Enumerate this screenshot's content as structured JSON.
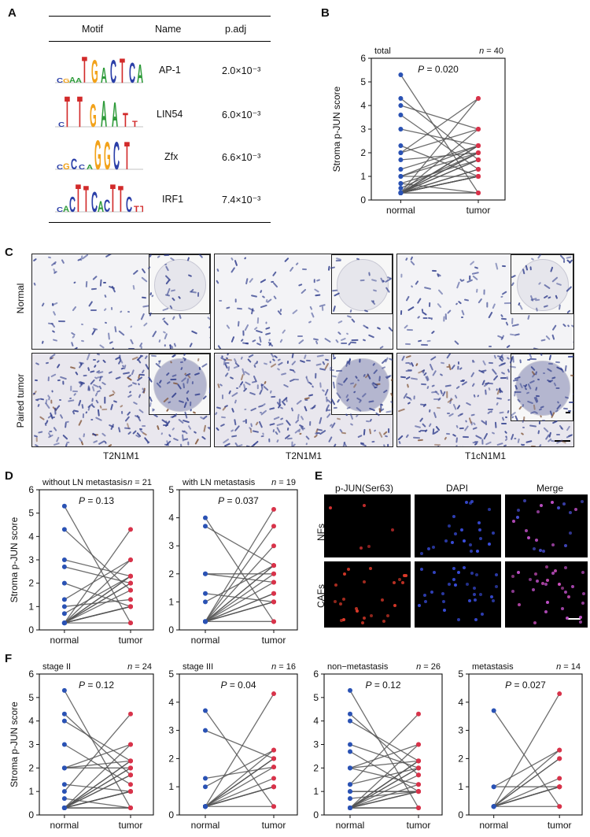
{
  "panel_labels": [
    "A",
    "B",
    "C",
    "D",
    "E",
    "F"
  ],
  "panelA": {
    "headers": [
      "Motif",
      "Name",
      "p.adj"
    ],
    "rows": [
      {
        "name": "AP-1",
        "padj": "2.0×10⁻³"
      },
      {
        "name": "LIN54",
        "padj": "6.0×10⁻³"
      },
      {
        "name": "Zfx",
        "padj": "6.6×10⁻³"
      },
      {
        "name": "IRF1",
        "padj": "7.4×10⁻³"
      }
    ],
    "colors": {
      "A": "#2e9b3a",
      "C": "#2b3fa8",
      "G": "#f2a21a",
      "T": "#d22a2a"
    }
  },
  "panelC": {
    "row_labels": [
      "Normal",
      "Paired tumor"
    ],
    "captions": [
      "T2N1M1",
      "T2N1M1",
      "T1cN1M1"
    ]
  },
  "panelE": {
    "headers": [
      "p-JUN(Ser63)",
      "DAPI",
      "Merge"
    ],
    "row_labels": [
      "NFs",
      "CAFs"
    ]
  },
  "ylabel": "Stroma p-JUN score",
  "chart_data": [
    {
      "id": "B",
      "type": "scatter",
      "subtitle": "total",
      "n": "40",
      "p": "0.020",
      "categories": [
        "normal",
        "tumor"
      ],
      "ylim": [
        0,
        6
      ],
      "yticks": [
        0,
        1,
        2,
        3,
        4,
        5,
        6
      ],
      "normal": [
        5.3,
        4.3,
        4.0,
        3.6,
        3.0,
        2.3,
        2.0,
        2.0,
        1.7,
        1.3,
        1.0,
        1.0,
        1.0,
        0.7,
        0.7,
        0.5,
        0.3,
        0.3,
        0.3,
        0.3,
        0.3,
        0.3,
        0.3,
        0.3,
        0.3,
        0.3,
        0.3,
        0.3,
        0.3,
        0.3,
        0.3,
        0.3,
        0.3,
        0.3,
        0.3,
        0.3,
        0.3,
        0.3,
        0.3,
        0.3
      ],
      "tumor": [
        0.3,
        1.7,
        3.0,
        1.3,
        2.3,
        1.0,
        3.0,
        4.3,
        2.0,
        2.3,
        2.3,
        1.0,
        2.0,
        0.3,
        1.7,
        2.0,
        1.0,
        1.0,
        1.0,
        1.0,
        2.3,
        2.0,
        2.3,
        1.0,
        1.3,
        1.7,
        2.3,
        3.0,
        4.3,
        0.3,
        1.0,
        1.3,
        2.0,
        2.3,
        0.3,
        1.0,
        1.0,
        1.0,
        2.3,
        1.7
      ]
    },
    {
      "id": "D1",
      "type": "scatter",
      "subtitle": "without LN metastasis",
      "n": "21",
      "p": "0.13",
      "categories": [
        "normal",
        "tumor"
      ],
      "ylim": [
        0,
        6
      ],
      "yticks": [
        0,
        1,
        2,
        3,
        4,
        5,
        6
      ],
      "normal": [
        5.3,
        4.3,
        3.0,
        2.7,
        2.0,
        1.3,
        1.0,
        0.7,
        0.3,
        0.3,
        0.3,
        0.3,
        0.3,
        0.3,
        0.3,
        0.3,
        0.3,
        0.3,
        0.3,
        0.3,
        0.3
      ],
      "tumor": [
        0.3,
        1.7,
        2.3,
        2.0,
        1.0,
        3.0,
        1.3,
        2.3,
        4.3,
        2.0,
        1.0,
        1.0,
        1.0,
        2.3,
        1.7,
        2.0,
        1.0,
        0.3,
        1.0,
        2.3,
        3.0
      ]
    },
    {
      "id": "D2",
      "type": "scatter",
      "subtitle": "with LN metastasis",
      "n": "19",
      "p": "0.037",
      "categories": [
        "normal",
        "tumor"
      ],
      "ylim": [
        0,
        5
      ],
      "yticks": [
        0,
        1,
        2,
        3,
        4,
        5
      ],
      "normal": [
        4.0,
        3.7,
        2.0,
        2.0,
        1.3,
        1.0,
        0.3,
        0.3,
        0.3,
        0.3,
        0.3,
        0.3,
        0.3,
        0.3,
        0.3,
        0.3,
        0.3,
        0.3,
        0.3
      ],
      "tumor": [
        0.3,
        2.3,
        1.7,
        2.0,
        1.0,
        2.3,
        3.0,
        4.3,
        1.3,
        2.0,
        1.0,
        1.0,
        2.3,
        3.7,
        1.0,
        1.7,
        0.3,
        2.3,
        1.3
      ]
    },
    {
      "id": "F1",
      "type": "scatter",
      "subtitle": "stage II",
      "n": "24",
      "p": "0.12",
      "categories": [
        "normal",
        "tumor"
      ],
      "ylim": [
        0,
        6
      ],
      "yticks": [
        0,
        1,
        2,
        3,
        4,
        5,
        6
      ],
      "normal": [
        5.3,
        4.3,
        4.0,
        3.0,
        2.0,
        2.0,
        2.0,
        1.3,
        1.0,
        0.7,
        0.3,
        0.3,
        0.3,
        0.3,
        0.3,
        0.3,
        0.3,
        0.3,
        0.3,
        0.3,
        0.3,
        0.3,
        0.3,
        0.3
      ],
      "tumor": [
        0.3,
        1.7,
        2.3,
        1.3,
        2.0,
        3.0,
        2.3,
        1.0,
        4.3,
        0.3,
        1.0,
        2.0,
        1.0,
        1.0,
        2.3,
        1.7,
        1.0,
        0.3,
        2.0,
        3.0,
        1.0,
        2.3,
        0.3,
        1.7
      ]
    },
    {
      "id": "F2",
      "type": "scatter",
      "subtitle": "stage III",
      "n": "16",
      "p": "0.04",
      "categories": [
        "normal",
        "tumor"
      ],
      "ylim": [
        0,
        5
      ],
      "yticks": [
        0,
        1,
        2,
        3,
        4,
        5
      ],
      "normal": [
        3.7,
        3.0,
        1.3,
        1.0,
        0.3,
        0.3,
        0.3,
        0.3,
        0.3,
        0.3,
        0.3,
        0.3,
        0.3,
        0.3,
        0.3,
        0.3
      ],
      "tumor": [
        0.3,
        2.0,
        1.7,
        2.3,
        1.0,
        2.0,
        4.3,
        2.0,
        1.0,
        1.0,
        2.3,
        1.3,
        1.0,
        1.7,
        0.3,
        2.0
      ]
    },
    {
      "id": "F3",
      "type": "scatter",
      "subtitle": "non−metastasis",
      "n": "26",
      "p": "0.12",
      "categories": [
        "normal",
        "tumor"
      ],
      "ylim": [
        0,
        6
      ],
      "yticks": [
        0,
        1,
        2,
        3,
        4,
        5,
        6
      ],
      "normal": [
        5.3,
        4.3,
        4.0,
        3.0,
        2.7,
        2.0,
        2.0,
        2.0,
        1.3,
        1.3,
        1.0,
        1.0,
        0.7,
        0.3,
        0.3,
        0.3,
        0.3,
        0.3,
        0.3,
        0.3,
        0.3,
        0.3,
        0.3,
        0.3,
        0.3,
        0.3
      ],
      "tumor": [
        0.3,
        1.7,
        2.3,
        2.0,
        1.0,
        3.0,
        1.3,
        2.3,
        4.3,
        2.0,
        1.0,
        1.0,
        1.0,
        2.3,
        1.7,
        2.0,
        1.0,
        0.3,
        1.0,
        2.3,
        3.0,
        2.0,
        1.3,
        0.3,
        1.0,
        2.3
      ]
    },
    {
      "id": "F4",
      "type": "scatter",
      "subtitle": "metastasis",
      "n": "14",
      "p": "0.027",
      "categories": [
        "normal",
        "tumor"
      ],
      "ylim": [
        0,
        5
      ],
      "yticks": [
        0,
        1,
        2,
        3,
        4,
        5
      ],
      "normal": [
        3.7,
        1.0,
        1.0,
        0.3,
        0.3,
        0.3,
        0.3,
        0.3,
        0.3,
        0.3,
        0.3,
        0.3,
        0.3,
        0.3
      ],
      "tumor": [
        0.3,
        2.3,
        1.0,
        2.0,
        1.3,
        4.3,
        1.0,
        1.0,
        2.3,
        0.3,
        1.0,
        1.0,
        2.0,
        1.0
      ]
    }
  ]
}
